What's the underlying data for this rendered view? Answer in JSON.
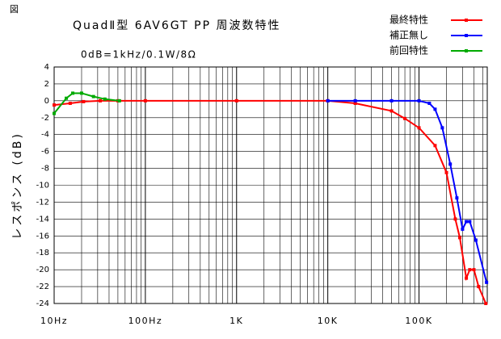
{
  "chart_data": {
    "type": "line",
    "figure_label": "図",
    "title": "QuadⅡ型 6AV6GT PP 周波数特性",
    "subtitle": "0dB=1kHz/0.1W/8Ω",
    "y_label": "レスポンス (dB)",
    "x_scale": "log",
    "grid": true,
    "legend_position": "top-right",
    "xlim": [
      10,
      560000
    ],
    "ylim": [
      -24,
      4
    ],
    "xticks": [
      {
        "value": 10,
        "label": "10Hz"
      },
      {
        "value": 100,
        "label": "100Hz"
      },
      {
        "value": 1000,
        "label": "1K"
      },
      {
        "value": 10000,
        "label": "10K"
      },
      {
        "value": 100000,
        "label": "100K"
      }
    ],
    "yticks": [
      4,
      2,
      0,
      -2,
      -4,
      -6,
      -8,
      -10,
      -12,
      -14,
      -16,
      -18,
      -20,
      -22,
      -24
    ],
    "series": [
      {
        "name": "最終特性",
        "color": "#ff0000",
        "x": [
          10,
          15,
          21,
          32,
          50,
          100,
          1000,
          10000,
          20000,
          50000,
          70000,
          100000,
          150000,
          200000,
          250000,
          280000,
          330000,
          360000,
          400000,
          450000,
          540000
        ],
        "values": [
          -0.5,
          -0.3,
          -0.1,
          0,
          0,
          0,
          0,
          0,
          -0.3,
          -1.2,
          -2.1,
          -3.2,
          -5.3,
          -8.5,
          -14,
          -16.2,
          -21,
          -20,
          -20,
          -22,
          -24
        ]
      },
      {
        "name": "補正無し",
        "color": "#0000ff",
        "x": [
          10000,
          20000,
          50000,
          100000,
          130000,
          150000,
          180000,
          220000,
          260000,
          300000,
          330000,
          360000,
          420000,
          550000
        ],
        "values": [
          0,
          0,
          0,
          0,
          -0.3,
          -1,
          -3.2,
          -7.5,
          -11.5,
          -15.2,
          -14.3,
          -14.3,
          -16.5,
          -21.5
        ]
      },
      {
        "name": "前回特性",
        "color": "#00aa00",
        "x": [
          10,
          13.6,
          16,
          20,
          27,
          36,
          52
        ],
        "values": [
          -1.5,
          0.3,
          0.9,
          0.9,
          0.5,
          0.2,
          0
        ]
      }
    ]
  }
}
